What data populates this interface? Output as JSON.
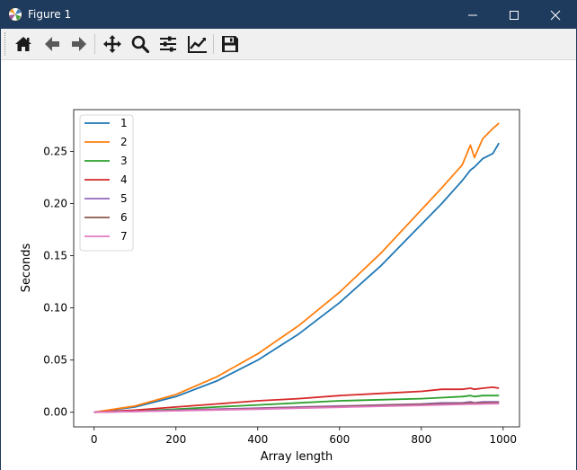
{
  "window": {
    "title": "Figure 1"
  },
  "toolbar": {
    "buttons": [
      {
        "name": "home-icon"
      },
      {
        "name": "back-icon"
      },
      {
        "name": "forward-icon"
      },
      {
        "name": "pan-icon"
      },
      {
        "name": "zoom-icon"
      },
      {
        "name": "configure-subplots-icon"
      },
      {
        "name": "edit-axis-icon"
      },
      {
        "name": "save-icon"
      }
    ]
  },
  "chart_data": {
    "type": "line",
    "title": "",
    "xlabel": "Array length",
    "ylabel": "Seconds",
    "xlim": [
      -50,
      1040
    ],
    "ylim": [
      -0.014,
      0.29
    ],
    "xticks": [
      0,
      200,
      400,
      600,
      800,
      1000
    ],
    "xtick_labels": [
      "0",
      "200",
      "400",
      "600",
      "800",
      "1000"
    ],
    "yticks": [
      0.0,
      0.05,
      0.1,
      0.15,
      0.2,
      0.25
    ],
    "ytick_labels": [
      "0.00",
      "0.05",
      "0.10",
      "0.15",
      "0.20",
      "0.25"
    ],
    "grid": false,
    "legend_position": "top-left",
    "x": [
      0,
      100,
      200,
      300,
      400,
      500,
      600,
      700,
      800,
      850,
      900,
      920,
      930,
      950,
      975,
      990
    ],
    "series": [
      {
        "name": "1",
        "color": "#1f77b4",
        "values": [
          0.0,
          0.005,
          0.015,
          0.03,
          0.05,
          0.075,
          0.105,
          0.14,
          0.18,
          0.2,
          0.222,
          0.232,
          0.235,
          0.243,
          0.248,
          0.258
        ]
      },
      {
        "name": "2",
        "color": "#ff7f0e",
        "values": [
          0.0,
          0.006,
          0.017,
          0.034,
          0.056,
          0.083,
          0.115,
          0.152,
          0.194,
          0.215,
          0.237,
          0.256,
          0.244,
          0.262,
          0.272,
          0.277
        ]
      },
      {
        "name": "3",
        "color": "#2ca02c",
        "values": [
          0.0,
          0.001,
          0.003,
          0.005,
          0.007,
          0.009,
          0.011,
          0.012,
          0.013,
          0.014,
          0.015,
          0.016,
          0.015,
          0.016,
          0.016,
          0.016
        ]
      },
      {
        "name": "4",
        "color": "#d62728",
        "values": [
          0.0,
          0.002,
          0.005,
          0.008,
          0.011,
          0.013,
          0.016,
          0.018,
          0.02,
          0.022,
          0.022,
          0.023,
          0.022,
          0.023,
          0.024,
          0.023
        ]
      },
      {
        "name": "5",
        "color": "#9467bd",
        "values": [
          0.0,
          0.001,
          0.002,
          0.003,
          0.004,
          0.005,
          0.006,
          0.007,
          0.008,
          0.009,
          0.009,
          0.01,
          0.009,
          0.01,
          0.01,
          0.01
        ]
      },
      {
        "name": "6",
        "color": "#8c564b",
        "values": [
          0.0,
          0.0008,
          0.0016,
          0.0025,
          0.0035,
          0.0045,
          0.0055,
          0.0065,
          0.0075,
          0.008,
          0.0085,
          0.009,
          0.0088,
          0.009,
          0.0092,
          0.0092
        ]
      },
      {
        "name": "7",
        "color": "#e377c2",
        "values": [
          0.0,
          0.0007,
          0.0014,
          0.0022,
          0.003,
          0.0039,
          0.0048,
          0.0057,
          0.0066,
          0.0071,
          0.0075,
          0.0079,
          0.0078,
          0.008,
          0.0082,
          0.0082
        ]
      }
    ]
  }
}
